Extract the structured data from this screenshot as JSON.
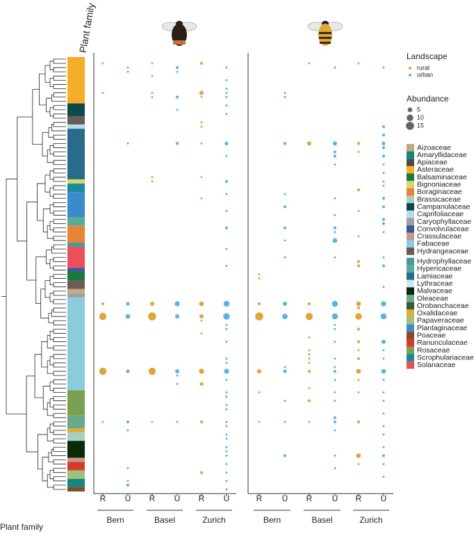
{
  "chart_data": {
    "type": "dot",
    "y_label": "Plant family",
    "y_label_top": "Plant family",
    "x_labels": [
      "R",
      "U",
      "R",
      "U",
      "R",
      "U"
    ],
    "groups": [
      "Bern",
      "Basel",
      "Zurich"
    ],
    "legend_title": "Landscape",
    "series": [
      {
        "name": "rural",
        "color": "#e3a33b"
      },
      {
        "name": "urban",
        "color": "#56b4e9"
      }
    ],
    "size_title": "Abundance",
    "size_values": [
      5,
      10,
      15
    ],
    "families": [
      {
        "name": "Aizoaceae",
        "color": "#c8a882"
      },
      {
        "name": "Amaryllidaceae",
        "color": "#12897a"
      },
      {
        "name": "Apiaceae",
        "color": "#4a4a4a"
      },
      {
        "name": "Asteraceae",
        "color": "#f5ad2a"
      },
      {
        "name": "Balsaminaceae",
        "color": "#1a7a3a"
      },
      {
        "name": "Bignoniaceae",
        "color": "#d4d86a"
      },
      {
        "name": "Boraginaceae",
        "color": "#e8833a"
      },
      {
        "name": "Brassicaceae",
        "color": "#a8cfc6"
      },
      {
        "name": "Campanulaceae",
        "color": "#0b4a4a"
      },
      {
        "name": "Caprifoliaceae",
        "color": "#b6dbe8"
      },
      {
        "name": "Caryophyllaceae",
        "color": "#a0a0a0"
      },
      {
        "name": "Convolvulaceae",
        "color": "#3a5a9a"
      },
      {
        "name": "Crassulaceae",
        "color": "#c89890"
      },
      {
        "name": "Fabaceae",
        "color": "#8accdc"
      },
      {
        "name": "Hydrangeaceae",
        "color": "#6a5a5a"
      },
      {
        "name": "Hydrophyllaceae",
        "color": "#4a9a9a"
      },
      {
        "name": "Hypericaceae",
        "color": "#5aaa9a"
      },
      {
        "name": "Lamiaceae",
        "color": "#2a6a8a"
      },
      {
        "name": "Lythraceae",
        "color": "#d0e8f0"
      },
      {
        "name": "Malvaceae",
        "color": "#0a2a0a"
      },
      {
        "name": "Oleaceae",
        "color": "#6aaa8a"
      },
      {
        "name": "Orobanchaceae",
        "color": "#3a5a3a"
      },
      {
        "name": "Oxalidaceae",
        "color": "#d8b040"
      },
      {
        "name": "Papaveraceae",
        "color": "#a0c080"
      },
      {
        "name": "Plantaginaceae",
        "color": "#3a8acc"
      },
      {
        "name": "Poaceae",
        "color": "#8a4a2a"
      },
      {
        "name": "Ranunculaceae",
        "color": "#d83a2a"
      },
      {
        "name": "Rosaceae",
        "color": "#7aa050"
      },
      {
        "name": "Scrophulariaceae",
        "color": "#1a8a9a"
      },
      {
        "name": "Solanaceae",
        "color": "#e8505a"
      }
    ],
    "family_bar": [
      {
        "family": 3,
        "size": 11
      },
      {
        "family": 8,
        "size": 3
      },
      {
        "family": 14,
        "size": 2
      },
      {
        "family": 9,
        "size": 1
      },
      {
        "family": 17,
        "size": 12
      },
      {
        "family": 5,
        "size": 1
      },
      {
        "family": 28,
        "size": 2
      },
      {
        "family": 24,
        "size": 6
      },
      {
        "family": 16,
        "size": 2
      },
      {
        "family": 6,
        "size": 4
      },
      {
        "family": 15,
        "size": 1
      },
      {
        "family": 29,
        "size": 5
      },
      {
        "family": 11,
        "size": 1
      },
      {
        "family": 4,
        "size": 2
      },
      {
        "family": 14,
        "size": 2
      },
      {
        "family": 0,
        "size": 1
      },
      {
        "family": 10,
        "size": 1
      },
      {
        "family": 13,
        "size": 22
      },
      {
        "family": 27,
        "size": 6
      },
      {
        "family": 20,
        "size": 3
      },
      {
        "family": 22,
        "size": 1
      },
      {
        "family": 7,
        "size": 2
      },
      {
        "family": 19,
        "size": 4
      },
      {
        "family": 12,
        "size": 1
      },
      {
        "family": 26,
        "size": 2
      },
      {
        "family": 23,
        "size": 2
      },
      {
        "family": 1,
        "size": 2
      },
      {
        "family": 25,
        "size": 1
      }
    ],
    "panels": [
      {
        "points": [
          [
            0,
            1,
            1
          ],
          [
            0,
            8,
            1
          ],
          [
            0,
            58,
            2
          ],
          [
            0,
            61,
            12
          ],
          [
            0,
            74,
            12
          ],
          [
            0,
            86,
            1
          ],
          [
            1,
            2,
            1
          ],
          [
            1,
            3,
            1
          ],
          [
            1,
            20,
            1
          ],
          [
            1,
            58,
            3
          ],
          [
            1,
            61,
            5
          ],
          [
            1,
            74,
            3
          ],
          [
            1,
            86,
            2
          ],
          [
            1,
            88,
            1
          ],
          [
            1,
            97,
            1
          ],
          [
            1,
            100,
            1
          ],
          [
            1,
            101,
            2
          ],
          [
            2,
            1,
            1
          ],
          [
            2,
            4,
            1
          ],
          [
            2,
            8,
            1
          ],
          [
            2,
            9,
            1
          ],
          [
            2,
            28,
            1
          ],
          [
            2,
            29,
            1
          ],
          [
            2,
            58,
            4
          ],
          [
            2,
            61,
            15
          ],
          [
            2,
            74,
            12
          ],
          [
            2,
            86,
            1
          ],
          [
            3,
            2,
            2
          ],
          [
            3,
            3,
            1
          ],
          [
            3,
            9,
            2
          ],
          [
            3,
            12,
            1
          ],
          [
            3,
            20,
            2
          ],
          [
            3,
            58,
            6
          ],
          [
            3,
            61,
            4
          ],
          [
            3,
            74,
            4
          ],
          [
            3,
            75,
            1
          ],
          [
            3,
            77,
            1
          ],
          [
            3,
            86,
            1
          ],
          [
            4,
            1,
            2
          ],
          [
            4,
            8,
            4
          ],
          [
            4,
            9,
            1
          ],
          [
            4,
            15,
            1
          ],
          [
            4,
            16,
            1
          ],
          [
            4,
            20,
            1
          ],
          [
            4,
            28,
            1
          ],
          [
            4,
            33,
            1
          ],
          [
            4,
            58,
            5
          ],
          [
            4,
            61,
            4
          ],
          [
            4,
            62,
            1
          ],
          [
            4,
            65,
            1
          ],
          [
            4,
            74,
            6
          ],
          [
            4,
            77,
            3
          ],
          [
            4,
            86,
            2
          ],
          [
            4,
            98,
            2
          ],
          [
            5,
            2,
            1
          ],
          [
            5,
            5,
            1
          ],
          [
            5,
            7,
            1
          ],
          [
            5,
            8,
            1
          ],
          [
            5,
            9,
            1
          ],
          [
            5,
            11,
            1
          ],
          [
            5,
            13,
            1
          ],
          [
            5,
            20,
            3
          ],
          [
            5,
            23,
            1
          ],
          [
            5,
            29,
            2
          ],
          [
            5,
            32,
            1
          ],
          [
            5,
            36,
            1
          ],
          [
            5,
            40,
            2
          ],
          [
            5,
            45,
            1
          ],
          [
            5,
            49,
            1
          ],
          [
            5,
            58,
            8
          ],
          [
            5,
            61,
            10
          ],
          [
            5,
            63,
            1
          ],
          [
            5,
            64,
            1
          ],
          [
            5,
            67,
            1
          ],
          [
            5,
            71,
            1
          ],
          [
            5,
            72,
            1
          ],
          [
            5,
            74,
            6
          ],
          [
            5,
            76,
            1
          ],
          [
            5,
            79,
            1
          ],
          [
            5,
            80,
            1
          ],
          [
            5,
            82,
            1
          ],
          [
            5,
            83,
            1
          ],
          [
            5,
            86,
            1
          ],
          [
            5,
            87,
            1
          ],
          [
            5,
            89,
            1
          ],
          [
            5,
            90,
            1
          ],
          [
            5,
            92,
            1
          ],
          [
            5,
            93,
            1
          ],
          [
            5,
            94,
            1
          ],
          [
            5,
            96,
            1
          ],
          [
            5,
            98,
            1
          ],
          [
            5,
            100,
            1
          ],
          [
            5,
            102,
            1
          ]
        ]
      },
      {
        "points": [
          [
            0,
            51,
            1
          ],
          [
            0,
            52,
            1
          ],
          [
            0,
            58,
            2
          ],
          [
            0,
            61,
            15
          ],
          [
            0,
            74,
            4
          ],
          [
            0,
            79,
            1
          ],
          [
            0,
            86,
            1
          ],
          [
            1,
            8,
            1
          ],
          [
            1,
            9,
            1
          ],
          [
            1,
            20,
            2
          ],
          [
            1,
            32,
            1
          ],
          [
            1,
            35,
            2
          ],
          [
            1,
            40,
            2
          ],
          [
            1,
            43,
            1
          ],
          [
            1,
            47,
            1
          ],
          [
            1,
            58,
            4
          ],
          [
            1,
            61,
            7
          ],
          [
            1,
            73,
            1
          ],
          [
            1,
            74,
            3
          ],
          [
            1,
            81,
            1
          ],
          [
            1,
            86,
            1
          ],
          [
            1,
            94,
            2
          ],
          [
            2,
            1,
            1
          ],
          [
            2,
            20,
            4
          ],
          [
            2,
            58,
            2
          ],
          [
            2,
            61,
            12
          ],
          [
            2,
            66,
            1
          ],
          [
            2,
            69,
            1
          ],
          [
            2,
            70,
            1
          ],
          [
            2,
            71,
            1
          ],
          [
            2,
            72,
            1
          ],
          [
            2,
            74,
            2
          ],
          [
            2,
            78,
            1
          ],
          [
            2,
            81,
            2
          ],
          [
            2,
            86,
            1
          ],
          [
            3,
            2,
            1
          ],
          [
            3,
            20,
            4
          ],
          [
            3,
            22,
            2
          ],
          [
            3,
            23,
            2
          ],
          [
            3,
            25,
            1
          ],
          [
            3,
            33,
            1
          ],
          [
            3,
            37,
            1
          ],
          [
            3,
            40,
            2
          ],
          [
            3,
            41,
            1
          ],
          [
            3,
            43,
            5
          ],
          [
            3,
            47,
            1
          ],
          [
            3,
            58,
            8
          ],
          [
            3,
            61,
            8
          ],
          [
            3,
            63,
            1
          ],
          [
            3,
            64,
            1
          ],
          [
            3,
            67,
            1
          ],
          [
            3,
            71,
            1
          ],
          [
            3,
            73,
            1
          ],
          [
            3,
            74,
            2
          ],
          [
            3,
            76,
            1
          ],
          [
            3,
            79,
            1
          ],
          [
            3,
            81,
            1
          ],
          [
            3,
            85,
            2
          ],
          [
            3,
            86,
            2
          ],
          [
            3,
            88,
            1
          ],
          [
            3,
            94,
            1
          ],
          [
            3,
            97,
            1
          ],
          [
            4,
            1,
            1
          ],
          [
            4,
            20,
            2
          ],
          [
            4,
            22,
            1
          ],
          [
            4,
            31,
            2
          ],
          [
            4,
            36,
            1
          ],
          [
            4,
            42,
            1
          ],
          [
            4,
            48,
            2
          ],
          [
            4,
            49,
            2
          ],
          [
            4,
            58,
            5
          ],
          [
            4,
            59,
            2
          ],
          [
            4,
            61,
            10
          ],
          [
            4,
            64,
            2
          ],
          [
            4,
            67,
            2
          ],
          [
            4,
            69,
            1
          ],
          [
            4,
            71,
            2
          ],
          [
            4,
            74,
            5
          ],
          [
            4,
            76,
            1
          ],
          [
            4,
            79,
            1
          ],
          [
            4,
            86,
            2
          ],
          [
            4,
            94,
            5
          ],
          [
            4,
            96,
            1
          ],
          [
            5,
            2,
            1
          ],
          [
            5,
            16,
            2
          ],
          [
            5,
            18,
            2
          ],
          [
            5,
            20,
            3
          ],
          [
            5,
            21,
            2
          ],
          [
            5,
            23,
            2
          ],
          [
            5,
            25,
            1
          ],
          [
            5,
            27,
            1
          ],
          [
            5,
            29,
            1
          ],
          [
            5,
            30,
            1
          ],
          [
            5,
            33,
            2
          ],
          [
            5,
            35,
            2
          ],
          [
            5,
            38,
            2
          ],
          [
            5,
            39,
            2
          ],
          [
            5,
            41,
            1
          ],
          [
            5,
            47,
            1
          ],
          [
            5,
            49,
            2
          ],
          [
            5,
            54,
            1
          ],
          [
            5,
            58,
            6
          ],
          [
            5,
            61,
            8
          ],
          [
            5,
            67,
            4
          ],
          [
            5,
            69,
            1
          ],
          [
            5,
            71,
            1
          ],
          [
            5,
            74,
            5
          ],
          [
            5,
            76,
            1
          ],
          [
            5,
            79,
            1
          ],
          [
            5,
            81,
            1
          ],
          [
            5,
            84,
            1
          ],
          [
            5,
            87,
            1
          ],
          [
            5,
            89,
            1
          ],
          [
            5,
            92,
            1
          ],
          [
            5,
            94,
            2
          ],
          [
            5,
            96,
            1
          ],
          [
            5,
            99,
            1
          ]
        ]
      }
    ]
  }
}
